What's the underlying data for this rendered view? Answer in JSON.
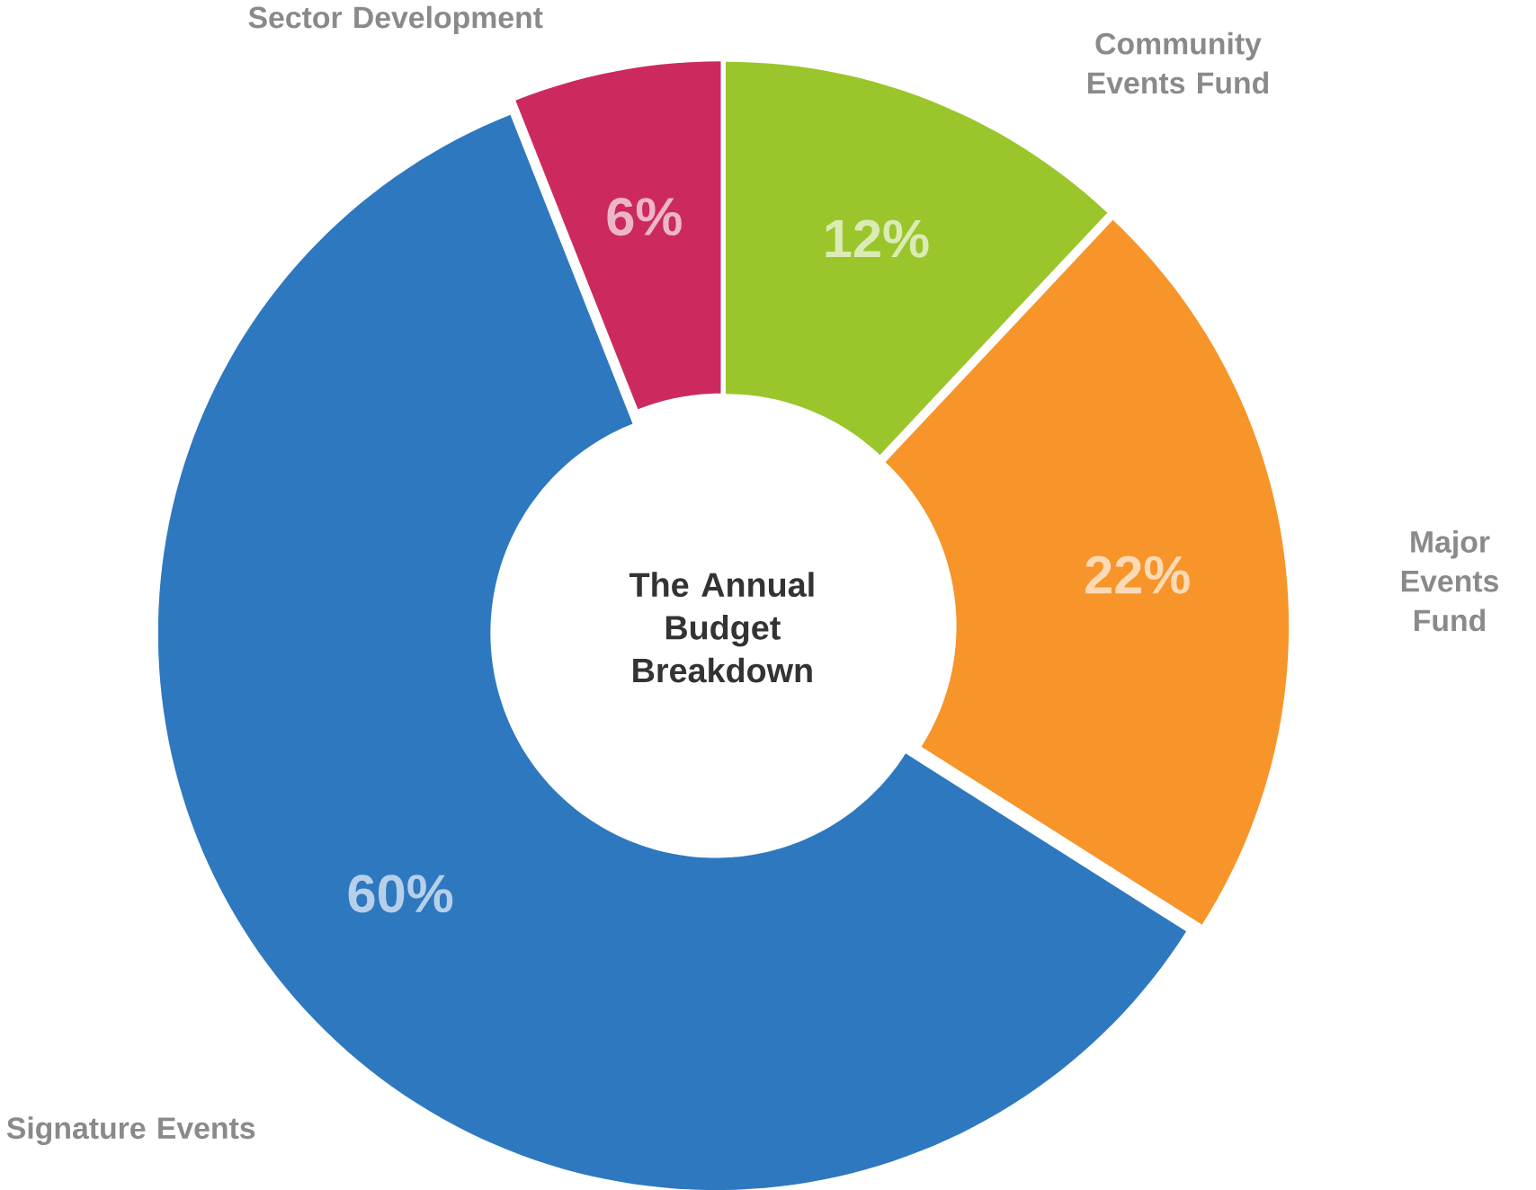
{
  "chart_data": {
    "type": "donut",
    "title": "The Annual Budget Breakdown",
    "categories": [
      "Community Events Fund",
      "Major Events Fund",
      "Signature Events",
      "Sector Development"
    ],
    "values": [
      12,
      22,
      60,
      6
    ],
    "colors": [
      "#9ac62b",
      "#f7942a",
      "#2e78c0",
      "#cc2a5e"
    ],
    "value_labels": [
      "12%",
      "22%",
      "60%",
      "6%"
    ]
  }
}
